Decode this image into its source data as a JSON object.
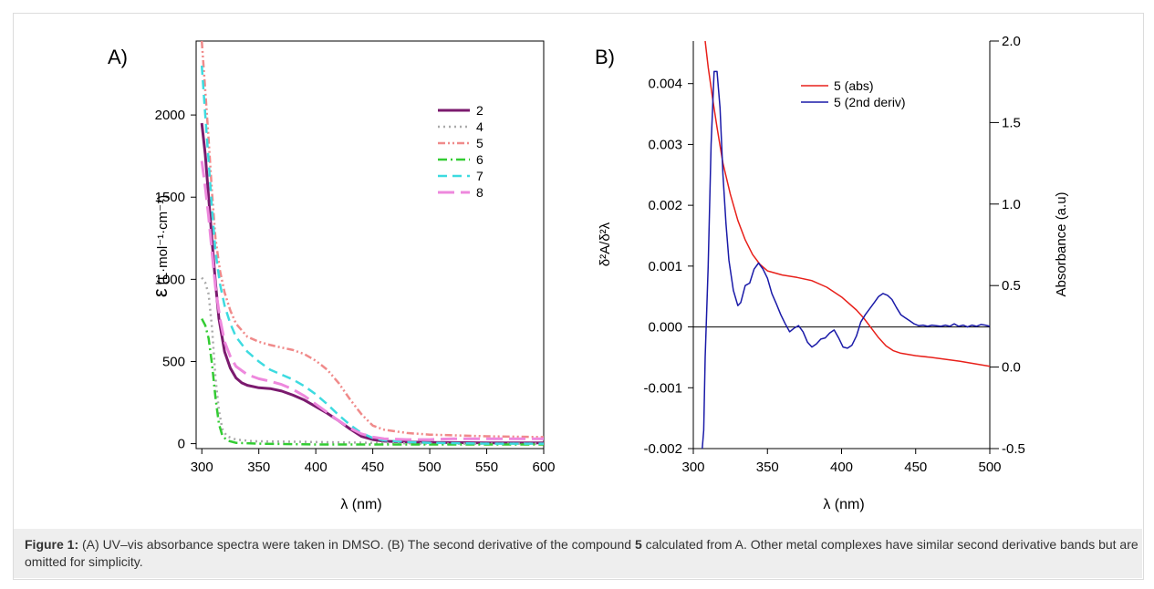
{
  "caption": {
    "label": "Figure 1:",
    "part1": " (A) UV–vis absorbance spectra were taken in DMSO. (B) The second derivative of the compound ",
    "compound": "5",
    "part2": " calculated from A. Other metal complexes have similar second derivative bands but are omitted for simplicity."
  },
  "chart_data": [
    {
      "panel": "A)",
      "type": "line",
      "xlabel": "λ (nm)",
      "ylabel_symbol": "ε",
      "ylabel_units": "(L·mol⁻¹·cm⁻¹)",
      "xlim": [
        295,
        600
      ],
      "ylim": [
        -30,
        2450
      ],
      "xticks": [
        300,
        350,
        400,
        450,
        500,
        550,
        600
      ],
      "yticks": [
        0,
        500,
        1000,
        1500,
        2000
      ],
      "legend_position": "top-right",
      "series": [
        {
          "name": "2",
          "color": "#7b1a6e",
          "dash": "solid",
          "width": 3,
          "points": [
            [
              300,
              1950
            ],
            [
              303,
              1760
            ],
            [
              306,
              1500
            ],
            [
              309,
              1230
            ],
            [
              312,
              980
            ],
            [
              315,
              760
            ],
            [
              320,
              560
            ],
            [
              325,
              460
            ],
            [
              330,
              400
            ],
            [
              335,
              370
            ],
            [
              340,
              355
            ],
            [
              350,
              340
            ],
            [
              360,
              335
            ],
            [
              370,
              320
            ],
            [
              380,
              295
            ],
            [
              390,
              265
            ],
            [
              400,
              225
            ],
            [
              410,
              185
            ],
            [
              420,
              140
            ],
            [
              430,
              90
            ],
            [
              440,
              45
            ],
            [
              450,
              25
            ],
            [
              460,
              15
            ],
            [
              480,
              10
            ],
            [
              500,
              8
            ],
            [
              550,
              5
            ],
            [
              600,
              5
            ]
          ]
        },
        {
          "name": "4",
          "color": "#aaaaaa",
          "dash": "dot",
          "width": 2.5,
          "points": [
            [
              300,
              1010
            ],
            [
              303,
              980
            ],
            [
              306,
              910
            ],
            [
              309,
              700
            ],
            [
              312,
              400
            ],
            [
              315,
              200
            ],
            [
              318,
              90
            ],
            [
              322,
              45
            ],
            [
              330,
              25
            ],
            [
              345,
              15
            ],
            [
              400,
              10
            ],
            [
              450,
              5
            ],
            [
              500,
              0
            ],
            [
              600,
              0
            ]
          ]
        },
        {
          "name": "5",
          "color": "#f08a8a",
          "dash": "dashdotdot",
          "width": 2.5,
          "points": [
            [
              300,
              2460
            ],
            [
              303,
              2150
            ],
            [
              306,
              1850
            ],
            [
              309,
              1520
            ],
            [
              312,
              1250
            ],
            [
              316,
              1050
            ],
            [
              320,
              920
            ],
            [
              325,
              810
            ],
            [
              330,
              730
            ],
            [
              340,
              650
            ],
            [
              350,
              620
            ],
            [
              360,
              600
            ],
            [
              370,
              585
            ],
            [
              380,
              570
            ],
            [
              390,
              545
            ],
            [
              400,
              505
            ],
            [
              410,
              450
            ],
            [
              420,
              370
            ],
            [
              430,
              270
            ],
            [
              440,
              180
            ],
            [
              450,
              110
            ],
            [
              460,
              85
            ],
            [
              480,
              65
            ],
            [
              500,
              55
            ],
            [
              550,
              45
            ],
            [
              600,
              40
            ]
          ]
        },
        {
          "name": "6",
          "color": "#33cc33",
          "dash": "dashdot",
          "width": 2.5,
          "points": [
            [
              300,
              760
            ],
            [
              303,
              720
            ],
            [
              306,
              640
            ],
            [
              309,
              480
            ],
            [
              312,
              280
            ],
            [
              315,
              120
            ],
            [
              318,
              50
            ],
            [
              322,
              20
            ],
            [
              330,
              5
            ],
            [
              350,
              0
            ],
            [
              400,
              -5
            ],
            [
              450,
              -5
            ],
            [
              500,
              -5
            ],
            [
              600,
              -5
            ]
          ]
        },
        {
          "name": "7",
          "color": "#3ddbe0",
          "dash": "dash",
          "width": 2.5,
          "points": [
            [
              300,
              2300
            ],
            [
              303,
              2000
            ],
            [
              306,
              1720
            ],
            [
              309,
              1420
            ],
            [
              312,
              1170
            ],
            [
              316,
              970
            ],
            [
              320,
              840
            ],
            [
              325,
              730
            ],
            [
              330,
              650
            ],
            [
              340,
              560
            ],
            [
              350,
              500
            ],
            [
              360,
              450
            ],
            [
              370,
              420
            ],
            [
              380,
              390
            ],
            [
              390,
              350
            ],
            [
              400,
              300
            ],
            [
              410,
              240
            ],
            [
              420,
              175
            ],
            [
              430,
              115
            ],
            [
              440,
              65
            ],
            [
              450,
              35
            ],
            [
              460,
              20
            ],
            [
              480,
              10
            ],
            [
              500,
              5
            ],
            [
              550,
              0
            ],
            [
              600,
              0
            ]
          ]
        },
        {
          "name": "8",
          "color": "#ee88dd",
          "dash": "longdash",
          "width": 3,
          "points": [
            [
              300,
              1720
            ],
            [
              303,
              1560
            ],
            [
              306,
              1380
            ],
            [
              309,
              1160
            ],
            [
              312,
              950
            ],
            [
              316,
              760
            ],
            [
              320,
              620
            ],
            [
              325,
              530
            ],
            [
              330,
              470
            ],
            [
              340,
              420
            ],
            [
              350,
              395
            ],
            [
              360,
              380
            ],
            [
              370,
              360
            ],
            [
              380,
              330
            ],
            [
              390,
              290
            ],
            [
              400,
              240
            ],
            [
              410,
              190
            ],
            [
              420,
              140
            ],
            [
              430,
              95
            ],
            [
              440,
              60
            ],
            [
              450,
              40
            ],
            [
              460,
              30
            ],
            [
              480,
              25
            ],
            [
              500,
              25
            ],
            [
              520,
              30
            ],
            [
              550,
              30
            ],
            [
              600,
              30
            ]
          ]
        }
      ]
    },
    {
      "panel": "B)",
      "type": "line",
      "xlabel": "λ (nm)",
      "ylabel_left": "δ²A/δ²λ",
      "ylabel_right": "Absorbance (a.u)",
      "xlim": [
        300,
        500
      ],
      "ylim_left": [
        -0.002,
        0.0047
      ],
      "ylim_right": [
        -0.5,
        2.0
      ],
      "xticks": [
        300,
        350,
        400,
        450,
        500
      ],
      "yticks_left": [
        -0.002,
        -0.001,
        0.0,
        0.001,
        0.002,
        0.003,
        0.004
      ],
      "ytick_labels_left": [
        "-0.002",
        "-0.001",
        "0.000",
        "0.001",
        "0.002",
        "0.003",
        "0.004"
      ],
      "yticks_right": [
        -0.5,
        0.0,
        0.5,
        1.0,
        1.5,
        2.0
      ],
      "ytick_labels_right": [
        "-0.5",
        "0.0",
        "0.5",
        "1.0",
        "1.5",
        "2.0"
      ],
      "zero_line": true,
      "legend_position": "top-right",
      "series": [
        {
          "name": "5 (abs)",
          "axis": "right",
          "color": "#e8201a",
          "width": 1.5,
          "points": [
            [
              308,
              2.0
            ],
            [
              310,
              1.84
            ],
            [
              313,
              1.65
            ],
            [
              316,
              1.47
            ],
            [
              320,
              1.25
            ],
            [
              325,
              1.06
            ],
            [
              330,
              0.9
            ],
            [
              335,
              0.78
            ],
            [
              340,
              0.69
            ],
            [
              345,
              0.63
            ],
            [
              350,
              0.59
            ],
            [
              360,
              0.565
            ],
            [
              370,
              0.55
            ],
            [
              380,
              0.53
            ],
            [
              390,
              0.49
            ],
            [
              400,
              0.43
            ],
            [
              410,
              0.35
            ],
            [
              415,
              0.3
            ],
            [
              420,
              0.24
            ],
            [
              425,
              0.18
            ],
            [
              430,
              0.13
            ],
            [
              435,
              0.1
            ],
            [
              440,
              0.085
            ],
            [
              450,
              0.07
            ],
            [
              460,
              0.06
            ],
            [
              480,
              0.035
            ],
            [
              500,
              0.005
            ]
          ]
        },
        {
          "name": "5 (2nd deriv)",
          "axis": "left",
          "color": "#1a1aa8",
          "width": 1.5,
          "points": [
            [
              306,
              -0.002
            ],
            [
              307,
              -0.0017
            ],
            [
              308,
              -0.0005
            ],
            [
              310,
              0.001
            ],
            [
              312,
              0.003
            ],
            [
              314,
              0.0042
            ],
            [
              316,
              0.0042
            ],
            [
              318,
              0.0036
            ],
            [
              320,
              0.0025
            ],
            [
              322,
              0.0017
            ],
            [
              324,
              0.0011
            ],
            [
              327,
              0.0006
            ],
            [
              330,
              0.00035
            ],
            [
              332,
              0.0004
            ],
            [
              335,
              0.00068
            ],
            [
              338,
              0.00072
            ],
            [
              341,
              0.00095
            ],
            [
              344,
              0.00105
            ],
            [
              347,
              0.00095
            ],
            [
              350,
              0.0008
            ],
            [
              353,
              0.00055
            ],
            [
              356,
              0.00038
            ],
            [
              359,
              0.0002
            ],
            [
              362,
              5e-05
            ],
            [
              365,
              -8e-05
            ],
            [
              368,
              -2e-05
            ],
            [
              371,
              2e-05
            ],
            [
              374,
              -8e-05
            ],
            [
              377,
              -0.00025
            ],
            [
              380,
              -0.00033
            ],
            [
              383,
              -0.00028
            ],
            [
              386,
              -0.0002
            ],
            [
              389,
              -0.00018
            ],
            [
              392,
              -0.0001
            ],
            [
              395,
              -5e-05
            ],
            [
              398,
              -0.00018
            ],
            [
              401,
              -0.00033
            ],
            [
              404,
              -0.00035
            ],
            [
              407,
              -0.0003
            ],
            [
              410,
              -0.00015
            ],
            [
              413,
              8e-05
            ],
            [
              416,
              0.0002
            ],
            [
              419,
              0.0003
            ],
            [
              422,
              0.0004
            ],
            [
              425,
              0.0005
            ],
            [
              428,
              0.00055
            ],
            [
              431,
              0.00052
            ],
            [
              434,
              0.00045
            ],
            [
              437,
              0.00032
            ],
            [
              440,
              0.0002
            ],
            [
              443,
              0.00015
            ],
            [
              446,
              0.0001
            ],
            [
              449,
              5e-05
            ],
            [
              452,
              2e-05
            ],
            [
              455,
              3e-05
            ],
            [
              458,
              1e-05
            ],
            [
              461,
              3e-05
            ],
            [
              464,
              2e-05
            ],
            [
              467,
              1e-05
            ],
            [
              470,
              3e-05
            ],
            [
              473,
              1e-05
            ],
            [
              476,
              5e-05
            ],
            [
              479,
              1e-05
            ],
            [
              482,
              3e-05
            ],
            [
              485,
              0.0
            ],
            [
              488,
              3e-05
            ],
            [
              491,
              1e-05
            ],
            [
              494,
              4e-05
            ],
            [
              497,
              3e-05
            ],
            [
              500,
              1e-05
            ]
          ]
        }
      ]
    }
  ]
}
